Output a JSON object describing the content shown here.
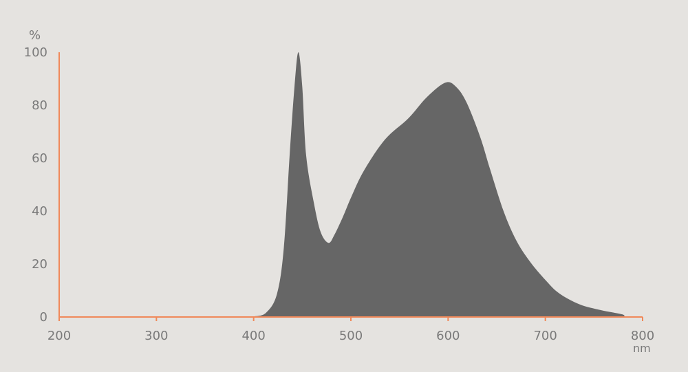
{
  "chart_data": {
    "type": "area",
    "title": "",
    "xlabel": "nm",
    "ylabel": "%",
    "xlim": [
      200,
      800
    ],
    "ylim": [
      0,
      100
    ],
    "xticks": [
      200,
      300,
      400,
      500,
      600,
      700,
      800
    ],
    "yticks": [
      0,
      20,
      40,
      60,
      80,
      100
    ],
    "grid": false,
    "colors": {
      "fill": "#666666",
      "axis": "#f0895a",
      "background": "#e5e3e0",
      "text": "#7a7a7a"
    },
    "x": [
      380,
      400,
      413,
      424,
      431,
      437,
      442,
      446,
      450,
      454,
      462,
      469,
      477,
      483,
      492,
      500,
      513,
      535,
      559,
      578,
      597,
      608,
      619,
      633,
      643,
      657,
      670,
      684,
      700,
      714,
      735,
      757,
      779,
      781
    ],
    "y": [
      0,
      0.2,
      1.7,
      8.7,
      26,
      61,
      87,
      100,
      87,
      61,
      43,
      32,
      28,
      31,
      38,
      45,
      55,
      67,
      75,
      83,
      88.5,
      87,
      81,
      68,
      56,
      40,
      29,
      21,
      14,
      9,
      4.8,
      2.6,
      1,
      0
    ]
  }
}
